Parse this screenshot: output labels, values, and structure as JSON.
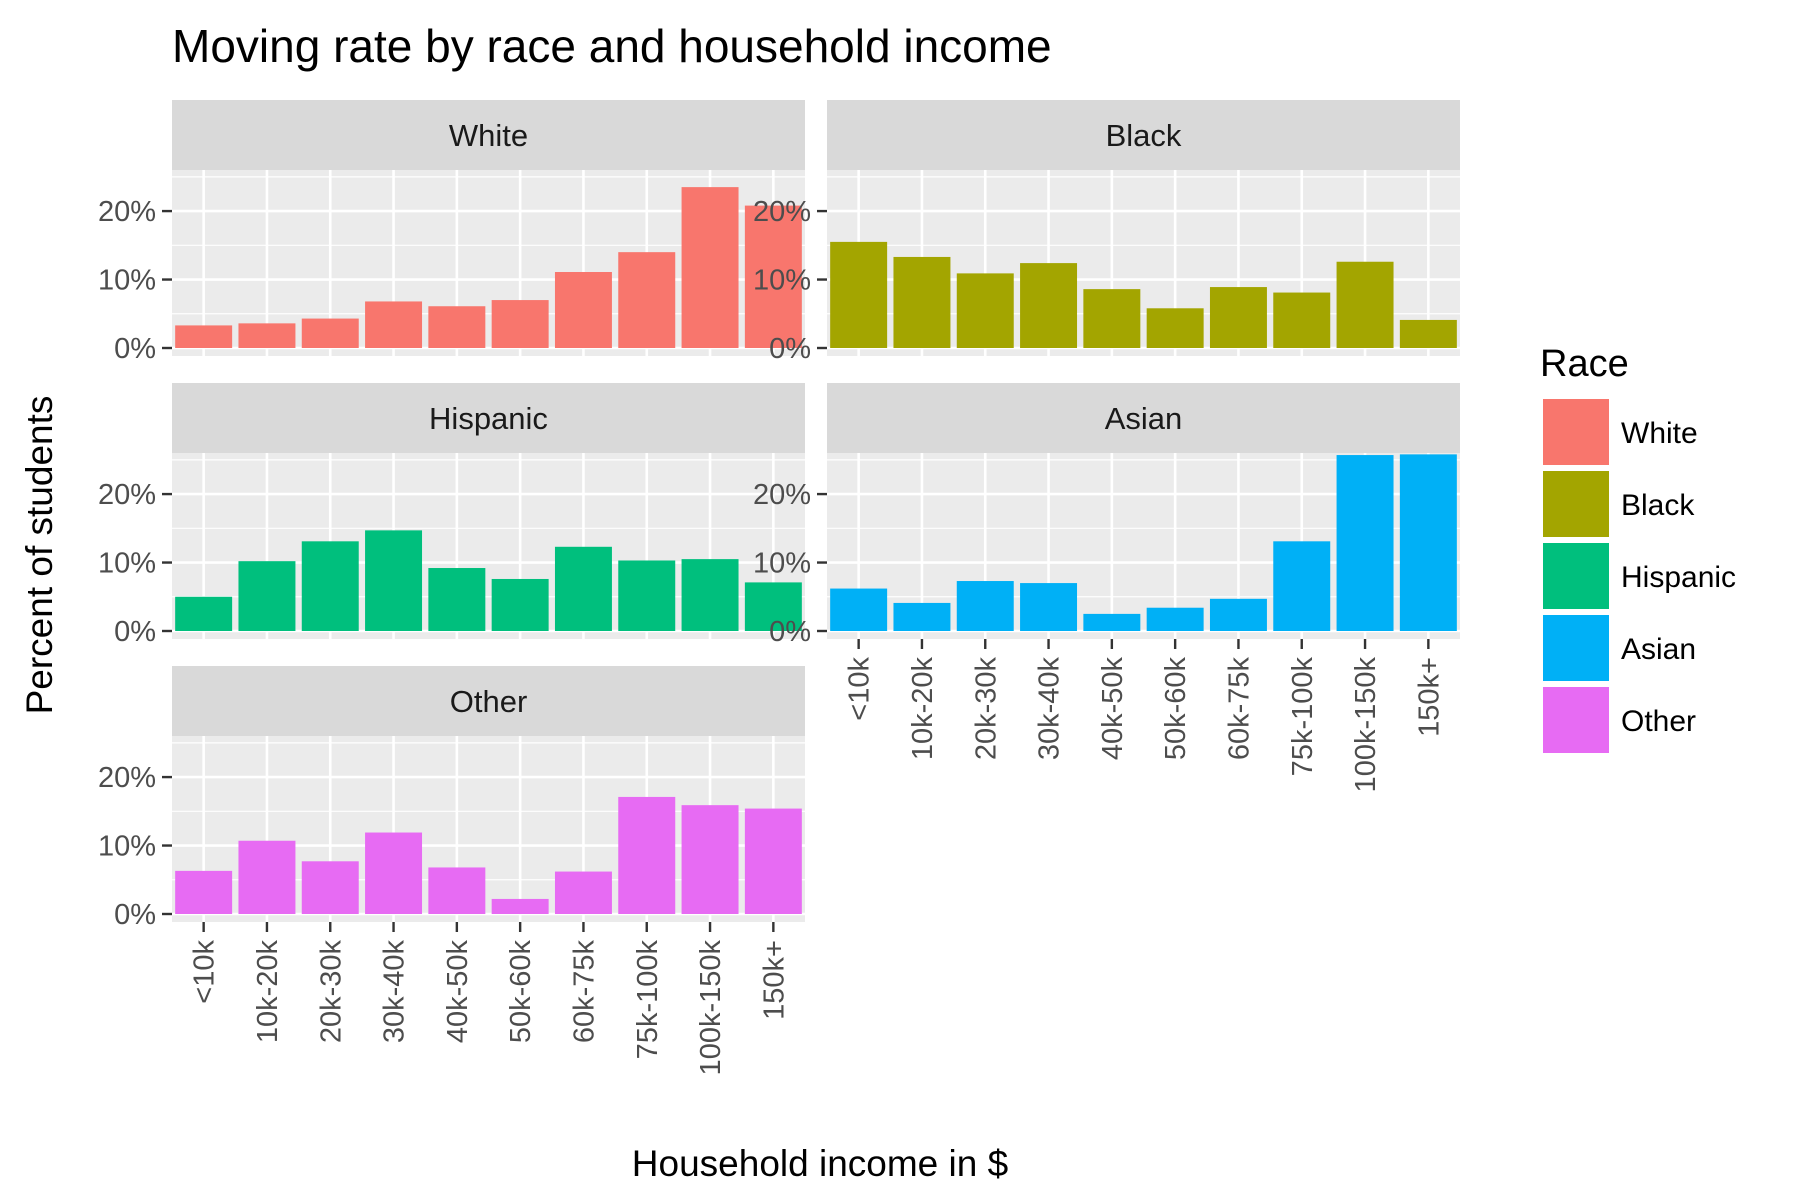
{
  "chart_data": {
    "type": "bar",
    "title": "Moving rate by race and household income",
    "xlabel": "Household income in $",
    "ylabel": "Percent of students",
    "ylim": [
      0,
      26
    ],
    "yticks": [
      0,
      10,
      20
    ],
    "ytick_labels": [
      "0%",
      "10%",
      "20%"
    ],
    "grid": true,
    "legend_position": "right",
    "legend_title": "Race",
    "categories": [
      "<10k",
      "10k-20k",
      "20k-30k",
      "30k-40k",
      "40k-50k",
      "50k-60k",
      "60k-75k",
      "75k-100k",
      "100k-150k",
      "150k+"
    ],
    "series": [
      {
        "name": "White",
        "color": "#F8766D",
        "values": [
          3.3,
          3.6,
          4.3,
          6.8,
          6.1,
          7.0,
          11.1,
          14.0,
          23.5,
          20.8
        ]
      },
      {
        "name": "Black",
        "color": "#A3A500",
        "values": [
          15.5,
          13.3,
          10.9,
          12.4,
          8.6,
          5.8,
          8.9,
          8.1,
          12.6,
          4.1
        ]
      },
      {
        "name": "Hispanic",
        "color": "#00BF7D",
        "values": [
          5.0,
          10.2,
          13.1,
          14.7,
          9.2,
          7.6,
          12.3,
          10.3,
          10.5,
          7.1
        ]
      },
      {
        "name": "Asian",
        "color": "#00B0F6",
        "values": [
          6.2,
          4.1,
          7.3,
          7.0,
          2.5,
          3.4,
          4.7,
          13.1,
          25.7,
          25.8
        ]
      },
      {
        "name": "Other",
        "color": "#E76BF3",
        "values": [
          6.3,
          10.7,
          7.7,
          11.9,
          6.8,
          2.2,
          6.2,
          17.1,
          15.9,
          15.4
        ]
      }
    ]
  }
}
